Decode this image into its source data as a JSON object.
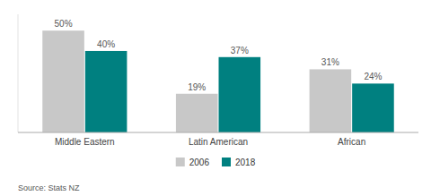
{
  "chart_data": {
    "type": "bar",
    "categories": [
      "Middle Eastern",
      "Latin American",
      "African"
    ],
    "series": [
      {
        "name": "2006",
        "color": "#c8c8c8",
        "values": [
          50,
          19,
          31
        ],
        "value_labels": [
          "50%",
          "19%",
          "31%"
        ]
      },
      {
        "name": "2018",
        "color": "#008080",
        "values": [
          40,
          37,
          24
        ],
        "value_labels": [
          "40%",
          "37%",
          "24%"
        ]
      }
    ],
    "ylim": [
      0,
      58
    ],
    "grid": false,
    "legend": "bottom",
    "data_labels": true,
    "tick_labels": "x",
    "annotations": [
      "Source: Stats NZ"
    ]
  }
}
